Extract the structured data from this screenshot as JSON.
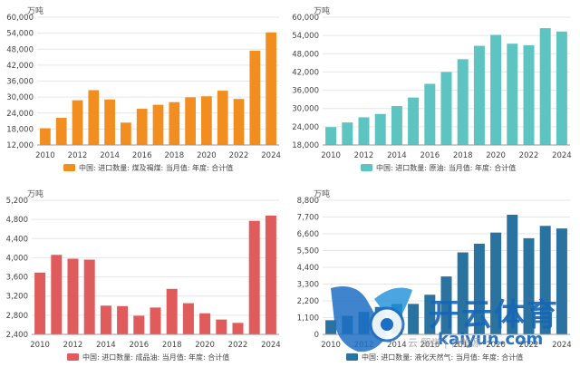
{
  "chart_data": [
    {
      "type": "bar",
      "unit": "万吨",
      "categories": [
        "2010",
        "2011",
        "2012",
        "2013",
        "2014",
        "2015",
        "2016",
        "2017",
        "2018",
        "2019",
        "2020",
        "2021",
        "2022",
        "2023",
        "2024"
      ],
      "values": [
        18300,
        22200,
        28800,
        32600,
        29100,
        20400,
        25600,
        27100,
        28100,
        29900,
        30300,
        32400,
        29300,
        47400,
        54300
      ],
      "ylim": [
        12000,
        60000
      ],
      "yticks": [
        "12,000",
        "18,000",
        "24,000",
        "30,000",
        "36,000",
        "42,000",
        "48,000",
        "54,000",
        "60,000"
      ],
      "xticks": [
        "2010",
        "2012",
        "2014",
        "2016",
        "2018",
        "2020",
        "2022",
        "2024"
      ],
      "legend": "中国: 进口数量: 煤及褐煤: 当月值: 年度: 合计值",
      "color": "#f28e1f"
    },
    {
      "type": "bar",
      "unit": "万吨",
      "categories": [
        "2010",
        "2011",
        "2012",
        "2013",
        "2014",
        "2015",
        "2016",
        "2017",
        "2018",
        "2019",
        "2020",
        "2021",
        "2022",
        "2023",
        "2024"
      ],
      "values": [
        23900,
        25400,
        27100,
        28200,
        30800,
        33600,
        38100,
        42000,
        46200,
        50600,
        54200,
        51300,
        50800,
        56400,
        55300
      ],
      "ylim": [
        18000,
        60000
      ],
      "yticks": [
        "18,000",
        "24,000",
        "30,000",
        "36,000",
        "42,000",
        "48,000",
        "54,000",
        "60,000"
      ],
      "xticks": [
        "2010",
        "2012",
        "2014",
        "2016",
        "2018",
        "2020",
        "2022",
        "2024"
      ],
      "legend": "中国: 进口数量: 原油: 当月值: 年度: 合计值",
      "color": "#5ec4c2"
    },
    {
      "type": "bar",
      "unit": "万吨",
      "categories": [
        "2010",
        "2011",
        "2012",
        "2013",
        "2014",
        "2015",
        "2016",
        "2017",
        "2018",
        "2019",
        "2020",
        "2021",
        "2022",
        "2023",
        "2024"
      ],
      "values": [
        3690,
        4060,
        3980,
        3960,
        3000,
        2990,
        2790,
        2960,
        3350,
        3050,
        2840,
        2710,
        2640,
        4770,
        4880
      ],
      "ylim": [
        2400,
        5200
      ],
      "yticks": [
        "2,400",
        "2,800",
        "3,200",
        "3,600",
        "4,000",
        "4,400",
        "4,800",
        "5,200"
      ],
      "xticks": [
        "2010",
        "2012",
        "2014",
        "2016",
        "2018",
        "2020",
        "2022",
        "2024"
      ],
      "legend": "中国: 进口数量: 成品油: 当月值: 年度: 合计值",
      "color": "#e05b5b"
    },
    {
      "type": "bar",
      "unit": "万吨",
      "categories": [
        "2010",
        "2011",
        "2012",
        "2013",
        "2014",
        "2015",
        "2016",
        "2017",
        "2018",
        "2019",
        "2020",
        "2021",
        "2022",
        "2023",
        "2024"
      ],
      "values": [
        930,
        1220,
        1480,
        1800,
        2000,
        2000,
        2600,
        3800,
        5380,
        5950,
        6680,
        7850,
        6310,
        7120,
        6950
      ],
      "ylim": [
        0,
        8800
      ],
      "yticks": [
        "0",
        "1,100",
        "2,200",
        "3,300",
        "4,400",
        "5,500",
        "6,600",
        "7,700",
        "8,800"
      ],
      "xticks": [
        "2010",
        "2012",
        "2014",
        "2016",
        "2018",
        "2020",
        "2022",
        "2024"
      ],
      "legend": "中国: 进口数量: 液化天然气: 当月值: 年度: 合计值",
      "color": "#2a72a0"
    }
  ],
  "watermark": {
    "brand_cn": "开云体育",
    "brand_en": "kaiyun.com",
    "source_caption": "云 熙学 | 合能源"
  }
}
